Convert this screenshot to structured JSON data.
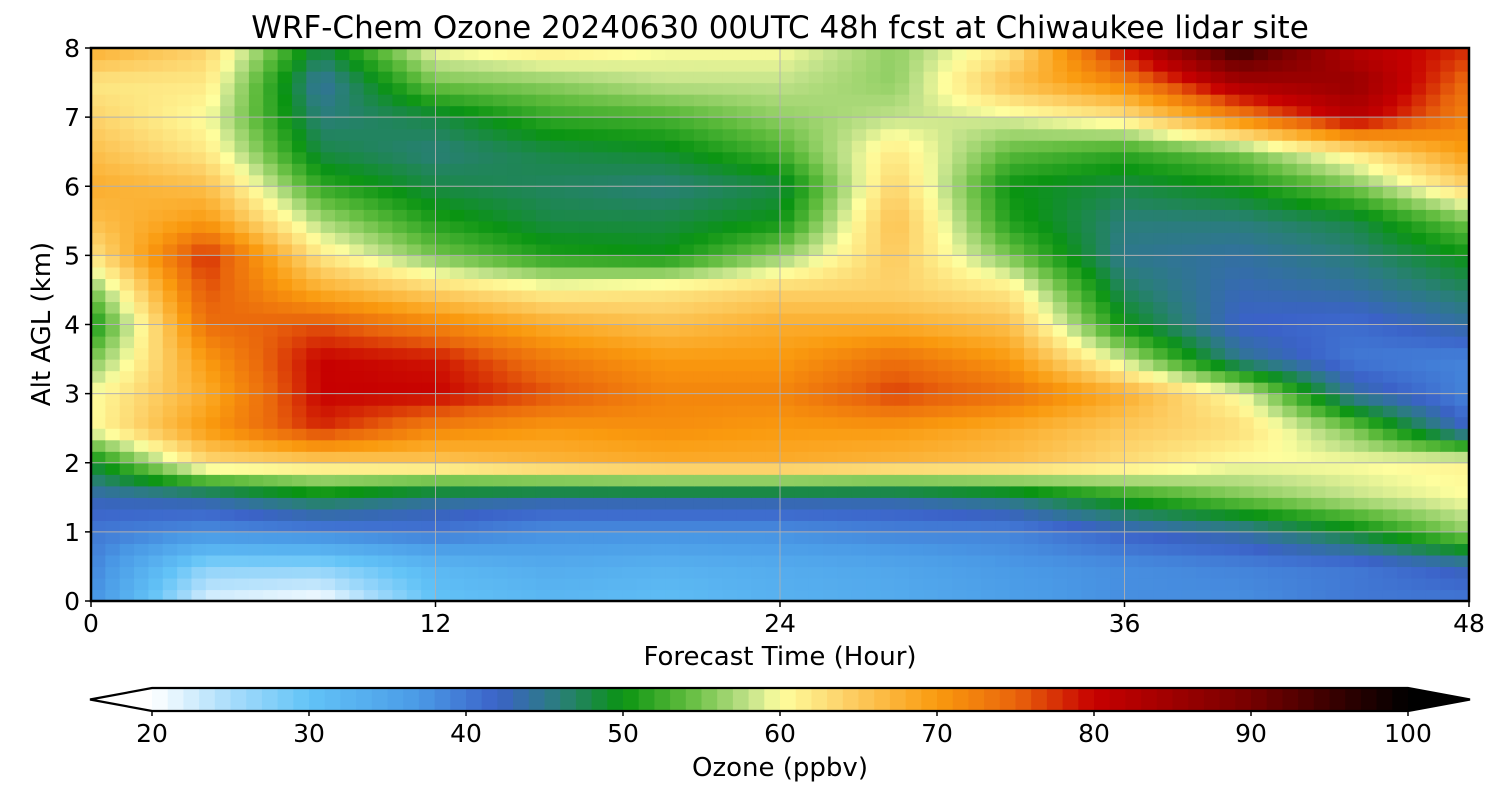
{
  "chart_data": {
    "type": "heatmap",
    "title": "WRF-Chem Ozone  20240630 00UTC 48h fcst at Chiwaukee lidar site",
    "xlabel": "Forecast Time (Hour)",
    "ylabel": "Alt AGL (km)",
    "xlim": [
      0,
      48
    ],
    "ylim": [
      0,
      8
    ],
    "x_ticks": [
      "0",
      "12",
      "24",
      "36",
      "48"
    ],
    "y_ticks": [
      "0",
      "1",
      "2",
      "3",
      "4",
      "5",
      "6",
      "7",
      "8"
    ],
    "grid": true,
    "x": [
      0,
      4,
      8,
      12,
      16,
      20,
      24,
      28,
      32,
      36,
      40,
      44,
      48
    ],
    "y": [
      0,
      0.5,
      1,
      1.5,
      2,
      2.5,
      3,
      3.5,
      4,
      4.5,
      5,
      5.5,
      6,
      6.5,
      7,
      7.5,
      8
    ],
    "z": [
      [
        38,
        22,
        20,
        30,
        32,
        31,
        33,
        34,
        36,
        38,
        38,
        40,
        40
      ],
      [
        39,
        27,
        27,
        32,
        34,
        33,
        34,
        35,
        37,
        38,
        39,
        40,
        43
      ],
      [
        40,
        38,
        39,
        40,
        38,
        38,
        38,
        39,
        39,
        42,
        44,
        49,
        56
      ],
      [
        43,
        44,
        48,
        45,
        44,
        44,
        44,
        44,
        46,
        51,
        55,
        58,
        60
      ],
      [
        49,
        63,
        64,
        65,
        67,
        68,
        68,
        67,
        66,
        63,
        60,
        60,
        61
      ],
      [
        60,
        70,
        78,
        72,
        70,
        71,
        70,
        70,
        68,
        65,
        63,
        55,
        42
      ],
      [
        60,
        68,
        80,
        80,
        76,
        72,
        72,
        77,
        74,
        68,
        60,
        44,
        39
      ],
      [
        55,
        70,
        80,
        79,
        73,
        70,
        70,
        74,
        70,
        58,
        45,
        40,
        39
      ],
      [
        50,
        74,
        76,
        72,
        68,
        66,
        68,
        68,
        66,
        50,
        42,
        41,
        44
      ],
      [
        55,
        76,
        68,
        64,
        61,
        62,
        64,
        64,
        62,
        47,
        43,
        44,
        47
      ],
      [
        62,
        78,
        62,
        55,
        51,
        50,
        56,
        65,
        55,
        45,
        44,
        46,
        50
      ],
      [
        66,
        70,
        57,
        51,
        48,
        48,
        50,
        66,
        51,
        46,
        46,
        48,
        55
      ],
      [
        68,
        66,
        52,
        48,
        47,
        46,
        48,
        64,
        50,
        48,
        50,
        55,
        64
      ],
      [
        66,
        62,
        48,
        46,
        48,
        49,
        53,
        62,
        54,
        52,
        55,
        62,
        70
      ],
      [
        64,
        60,
        46,
        48,
        52,
        53,
        56,
        58,
        59,
        62,
        72,
        82,
        72
      ],
      [
        62,
        62,
        44,
        55,
        56,
        58,
        58,
        56,
        66,
        72,
        84,
        86,
        74
      ],
      [
        68,
        64,
        48,
        60,
        62,
        60,
        60,
        56,
        62,
        80,
        96,
        82,
        78
      ]
    ],
    "colorbar": {
      "label": "Ozone  (ppbv)",
      "min": 20,
      "max": 100,
      "ticks": [
        "20",
        "30",
        "40",
        "50",
        "60",
        "70",
        "80",
        "90",
        "100"
      ],
      "extend": "both",
      "stops": [
        [
          20,
          "#ffffff"
        ],
        [
          25,
          "#a8dcfb"
        ],
        [
          30,
          "#62c3f7"
        ],
        [
          37,
          "#4a9ae6"
        ],
        [
          42,
          "#3b62c8"
        ],
        [
          46,
          "#2a7e7a"
        ],
        [
          50,
          "#0a9412"
        ],
        [
          54,
          "#5ebb3c"
        ],
        [
          58,
          "#c1e28a"
        ],
        [
          60,
          "#fefe9e"
        ],
        [
          64,
          "#fdd26a"
        ],
        [
          70,
          "#fa9a0e"
        ],
        [
          75,
          "#e9650c"
        ],
        [
          80,
          "#c70000"
        ],
        [
          90,
          "#760000"
        ],
        [
          100,
          "#000000"
        ]
      ]
    }
  }
}
